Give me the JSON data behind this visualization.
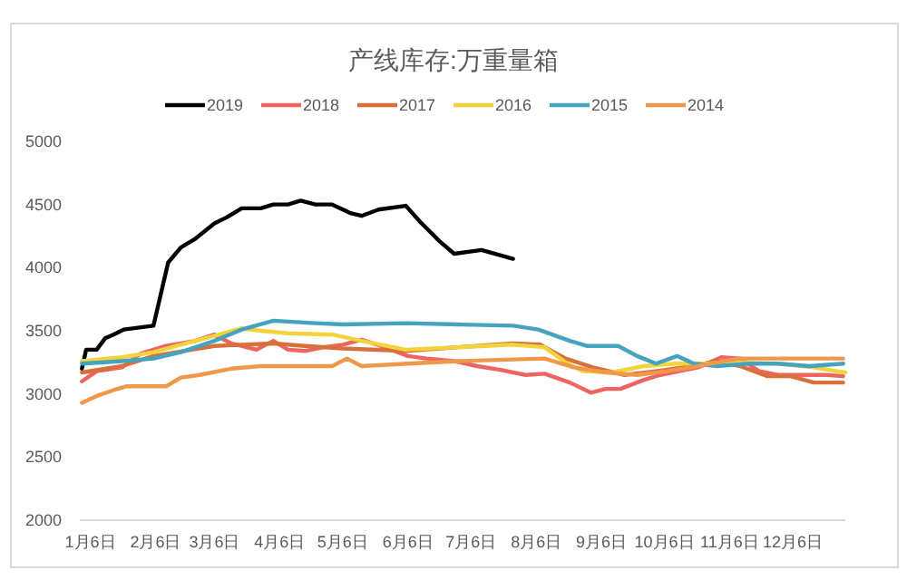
{
  "chart_data": {
    "type": "line",
    "title": "产线库存:万重量箱",
    "legend": "top",
    "grid": false,
    "marker": "none",
    "line_style": "solid",
    "xlim": [
      "--01-01",
      "--12-31"
    ],
    "xticks": [
      {
        "value": "--01-06",
        "label": "1月6日"
      },
      {
        "value": "--02-06",
        "label": "2月6日"
      },
      {
        "value": "--03-06",
        "label": "3月6日"
      },
      {
        "value": "--04-06",
        "label": "4月6日"
      },
      {
        "value": "--05-06",
        "label": "5月6日"
      },
      {
        "value": "--06-06",
        "label": "6月6日"
      },
      {
        "value": "--07-06",
        "label": "7月6日"
      },
      {
        "value": "--08-06",
        "label": "8月6日"
      },
      {
        "value": "--09-06",
        "label": "9月6日"
      },
      {
        "value": "--10-06",
        "label": "10月6日"
      },
      {
        "value": "--11-06",
        "label": "11月6日"
      },
      {
        "value": "--12-06",
        "label": "12月6日"
      }
    ],
    "ylim": [
      2000,
      5000
    ],
    "yticks": [
      2000,
      2500,
      3000,
      3500,
      4000,
      4500,
      5000
    ],
    "series": [
      {
        "name": "2019",
        "color": "#000000",
        "x": [
          "--01-02",
          "--01-04",
          "--01-09",
          "--01-13",
          "--01-17",
          "--01-22",
          "--02-05",
          "--02-12",
          "--02-18",
          "--02-25",
          "--03-06",
          "--03-12",
          "--03-19",
          "--03-28",
          "--04-03",
          "--04-10",
          "--04-16",
          "--04-23",
          "--05-01",
          "--05-10",
          "--05-15",
          "--05-23",
          "--06-05",
          "--06-12",
          "--06-21",
          "--06-28",
          "--07-11",
          "--07-26"
        ],
        "values": [
          3200,
          3350,
          3350,
          3440,
          3470,
          3510,
          3540,
          4040,
          4160,
          4230,
          4350,
          4400,
          4470,
          4470,
          4500,
          4500,
          4530,
          4500,
          4500,
          4430,
          4410,
          4460,
          4490,
          4360,
          4210,
          4110,
          4140,
          4070
        ]
      },
      {
        "name": "2018",
        "color": "#ef6461",
        "x": [
          "--01-02",
          "--01-09",
          "--01-21",
          "--01-30",
          "--02-11",
          "--02-25",
          "--03-06",
          "--03-14",
          "--03-26",
          "--04-03",
          "--04-10",
          "--04-18",
          "--04-27",
          "--05-06",
          "--05-15",
          "--05-26",
          "--06-06",
          "--06-15",
          "--06-28",
          "--07-09",
          "--07-20",
          "--08-01",
          "--08-10",
          "--08-22",
          "--09-01",
          "--09-08",
          "--09-15",
          "--09-26",
          "--10-04",
          "--10-22",
          "--11-02",
          "--11-11",
          "--11-20",
          "--11-29",
          "--12-14",
          "--12-22",
          "--12-30"
        ],
        "values": [
          3100,
          3180,
          3210,
          3320,
          3380,
          3420,
          3470,
          3400,
          3350,
          3420,
          3350,
          3340,
          3370,
          3390,
          3430,
          3370,
          3300,
          3280,
          3260,
          3220,
          3190,
          3150,
          3160,
          3090,
          3010,
          3040,
          3040,
          3110,
          3150,
          3210,
          3290,
          3280,
          3180,
          3150,
          3150,
          3150,
          3140
        ]
      },
      {
        "name": "2017",
        "color": "#d9703a",
        "x": [
          "--01-02",
          "--01-21",
          "--02-05",
          "--03-06",
          "--04-03",
          "--04-18",
          "--05-06",
          "--06-05",
          "--06-30",
          "--07-26",
          "--08-08",
          "--08-20",
          "--09-02",
          "--09-17",
          "--10-02",
          "--10-19",
          "--10-31",
          "--11-11",
          "--11-24",
          "--12-05",
          "--12-16",
          "--12-30"
        ],
        "values": [
          3170,
          3220,
          3300,
          3380,
          3400,
          3380,
          3360,
          3340,
          3370,
          3400,
          3390,
          3280,
          3210,
          3150,
          3180,
          3220,
          3260,
          3220,
          3140,
          3140,
          3090,
          3090
        ]
      },
      {
        "name": "2016",
        "color": "#f2d33c",
        "x": [
          "--01-02",
          "--01-21",
          "--02-05",
          "--02-18",
          "--03-06",
          "--03-19",
          "--03-28",
          "--04-10",
          "--05-01",
          "--05-15",
          "--06-05",
          "--06-30",
          "--07-26",
          "--08-10",
          "--08-20",
          "--08-28",
          "--09-11",
          "--09-26",
          "--10-11",
          "--10-25",
          "--11-11",
          "--11-29",
          "--12-16",
          "--12-27",
          "--12-31"
        ],
        "values": [
          3260,
          3290,
          3330,
          3390,
          3460,
          3520,
          3500,
          3480,
          3470,
          3420,
          3350,
          3370,
          3390,
          3370,
          3250,
          3180,
          3170,
          3220,
          3240,
          3240,
          3250,
          3240,
          3210,
          3180,
          3170
        ]
      },
      {
        "name": "2015",
        "color": "#45a3c0",
        "x": [
          "--01-02",
          "--01-21",
          "--02-05",
          "--02-18",
          "--03-06",
          "--03-19",
          "--04-03",
          "--04-23",
          "--05-06",
          "--06-05",
          "--06-30",
          "--07-26",
          "--08-07",
          "--08-22",
          "--08-30",
          "--09-14",
          "--09-23",
          "--10-02",
          "--10-12",
          "--10-20",
          "--10-31",
          "--11-15",
          "--11-29",
          "--12-14",
          "--12-30"
        ],
        "values": [
          3240,
          3260,
          3280,
          3330,
          3420,
          3510,
          3580,
          3560,
          3550,
          3560,
          3550,
          3540,
          3510,
          3420,
          3380,
          3380,
          3300,
          3240,
          3300,
          3240,
          3220,
          3240,
          3240,
          3220,
          3240
        ]
      },
      {
        "name": "2014",
        "color": "#f0984a",
        "x": [
          "--01-02",
          "--01-10",
          "--01-17",
          "--01-23",
          "--02-04",
          "--02-11",
          "--02-18",
          "--02-27",
          "--03-14",
          "--03-28",
          "--04-12",
          "--05-01",
          "--05-08",
          "--05-15",
          "--06-06",
          "--06-30",
          "--08-10",
          "--08-24",
          "--09-08",
          "--09-23",
          "--10-07",
          "--10-22",
          "--10-31",
          "--11-11",
          "--11-29",
          "--12-30"
        ],
        "values": [
          2930,
          2990,
          3030,
          3060,
          3060,
          3060,
          3130,
          3150,
          3200,
          3220,
          3220,
          3220,
          3280,
          3220,
          3240,
          3260,
          3280,
          3210,
          3170,
          3150,
          3180,
          3220,
          3250,
          3280,
          3280,
          3280
        ]
      }
    ]
  }
}
